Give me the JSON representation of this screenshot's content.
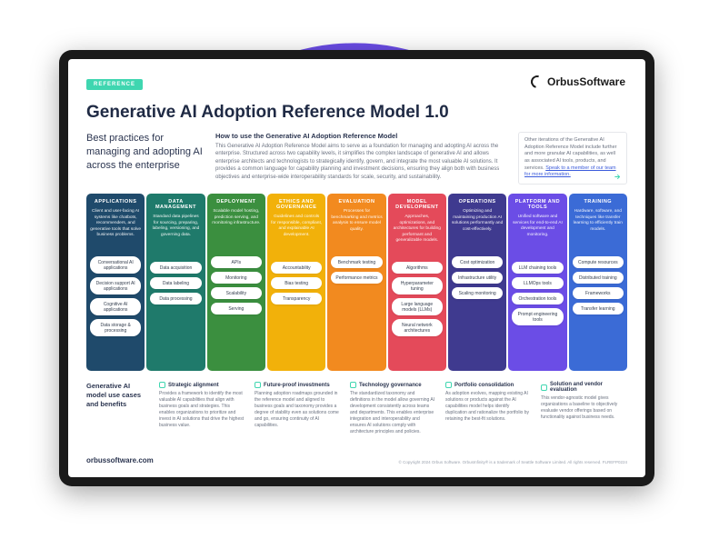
{
  "bg_circle_color": "#6b4de6",
  "frame_color": "#1a1a1a",
  "badge": {
    "text": "REFERENCE",
    "bg": "#3fd6b0"
  },
  "brand": "OrbusSoftware",
  "title": "Generative AI Adoption Reference Model 1.0",
  "intro": {
    "left": "Best practices for managing and adopting AI across the enterprise",
    "mid_title": "How to use the Generative AI Adoption Reference Model",
    "mid_body": "This Generative AI Adoption Reference Model aims to serve as a foundation for managing and adopting AI across the enterprise. Structured across two capability levels, it simplifies the complex landscape of generative AI and allows enterprise architects and technologists to strategically identify, govern, and integrate the most valuable AI solutions. It provides a common language for capability planning and investment decisions, ensuring they align both with business objectives and enterprise-wide interoperability standards for scale, security, and sustainability.",
    "right_a": "Other iterations of the Generative AI Adoption Reference Model include further and more granular AI capabilities, as well as associated AI tools, products, and services. ",
    "right_link": "Speak to a member of our team for more information."
  },
  "columns": [
    {
      "title": "APPLICATIONS",
      "bg": "#1f4a6b",
      "desc": "Client and user-facing AI systems like chatbots, recommenders, and generative tools that solve business problems.",
      "chips": [
        "Conversational AI applications",
        "Decision support AI applications",
        "Cognitive AI applications",
        "Data storage & processing"
      ]
    },
    {
      "title": "DATA MANAGEMENT",
      "bg": "#1f7a6b",
      "desc": "Standard data pipelines for sourcing, preparing, labeling, versioning, and governing data.",
      "chips": [
        "Data acquisition",
        "Data labeling",
        "Data processing"
      ]
    },
    {
      "title": "DEPLOYMENT",
      "bg": "#3b8f3f",
      "desc": "Scalable model hosting, prediction serving, and monitoring infrastructure.",
      "chips": [
        "APIs",
        "Monitoring",
        "Scalability",
        "Serving"
      ]
    },
    {
      "title": "ETHICS AND GOVERNANCE",
      "bg": "#f2b10a",
      "desc": "Guidelines and controls for responsible, compliant, and explainable AI development.",
      "chips": [
        "Accountability",
        "Bias testing",
        "Transparency"
      ]
    },
    {
      "title": "EVALUATION",
      "bg": "#f28a1f",
      "desc": "Processes for benchmarking and metrics analysis to ensure model quality.",
      "chips": [
        "Benchmark testing",
        "Performance metrics"
      ]
    },
    {
      "title": "MODEL DEVELOPMENT",
      "bg": "#e44a5a",
      "desc": "Approaches, optimizations, and architectures for building performant and generalizable models.",
      "chips": [
        "Algorithms",
        "Hyperparameter tuning",
        "Large language models (LLMs)",
        "Neural network architectures"
      ]
    },
    {
      "title": "OPERATIONS",
      "bg": "#3f3a8f",
      "desc": "Optimizing and maintaining production AI solutions performantly and cost-effectively.",
      "chips": [
        "Cost optimization",
        "Infrastructure utility",
        "Scaling monitoring"
      ]
    },
    {
      "title": "PLATFORM AND TOOLS",
      "bg": "#6b4de6",
      "desc": "Unified software and services for end-to-end AI development and monitoring.",
      "chips": [
        "LLM chaining tools",
        "LLMOps tools",
        "Orchestration tools",
        "Prompt engineering tools"
      ]
    },
    {
      "title": "TRAINING",
      "bg": "#3b6bd6",
      "desc": "Hardware, software, and techniques like transfer learning to efficiently train models.",
      "chips": [
        "Compute resources",
        "Distributed training",
        "Frameworks",
        "Transfer learning"
      ]
    }
  ],
  "benefits_label": "Generative AI model use cases and benefits",
  "benefits": [
    {
      "title": "Strategic alignment",
      "body": "Provides a framework to identify the most valuable AI capabilities that align with business goals and strategies. This enables organizations to prioritize and invest in AI solutions that drive the highest business value."
    },
    {
      "title": "Future-proof investments",
      "body": "Planning adoption roadmaps grounded in the reference model and aligned to business goals and taxonomy provides a degree of stability even as solutions come and go, ensuring continuity of AI capabilities."
    },
    {
      "title": "Technology governance",
      "body": "The standardized taxonomy and definitions in the model allow governing AI development consistently across teams and departments. This enables enterprise integration and interoperability and ensures AI solutions comply with architecture principles and policies."
    },
    {
      "title": "Portfolio consolidation",
      "body": "As adoption evolves, mapping existing AI solutions or products against the AI capabilities model helps identify duplication and rationalize the portfolio by retaining the best-fit solutions."
    },
    {
      "title": "Solution and vendor evaluation",
      "body": "This vendor-agnostic model gives organizations a baseline to objectively evaluate vendor offerings based on functionality against business needs."
    }
  ],
  "footer": {
    "left": "orbussoftware.com",
    "right": "© Copyright 2024 Orbus Software. OrbusInfinity® is a trademark of Seattle Software Limited. All rights reserved. FLREFP0224"
  }
}
